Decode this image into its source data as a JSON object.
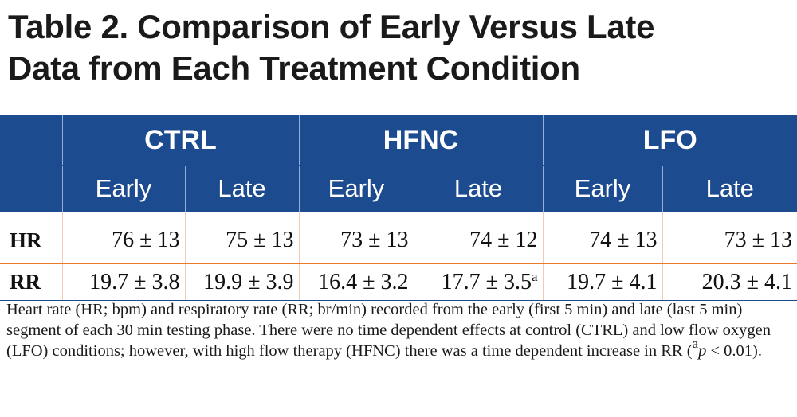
{
  "title": {
    "line1": "Table 2.  Comparison of Early Versus Late",
    "line2": "Data from Each Treatment Condition"
  },
  "table": {
    "groups": [
      "CTRL",
      "HFNC",
      "LFO"
    ],
    "subheaders": [
      "Early",
      "Late",
      "Early",
      "Late",
      "Early",
      "Late"
    ],
    "rows": [
      {
        "label": "HR",
        "cells": [
          "76 ± 13",
          "75 ± 13",
          "73 ± 13",
          "74 ± 12",
          "74 ± 13",
          "73 ± 13"
        ]
      },
      {
        "label": "RR",
        "cells": [
          "19.7 ± 3.8",
          "19.9 ± 3.9",
          "16.4 ± 3.2",
          "17.7 ± 3.5",
          "19.7 ± 4.1",
          "20.3 ± 4.1"
        ],
        "footnote_mark": "a"
      }
    ]
  },
  "caption": {
    "text": "Heart rate (HR; bpm) and respiratory rate (RR; br/min) recorded from the early (first 5 min) and late (last 5 min) segment of each 30 min testing phase.   There were no time dependent effects at control (CTRL) and low flow oxygen (LFO) conditions; however, with high flow therapy (HFNC) there was a time dependent increase in RR (",
    "sup": "a",
    "p_symbol": "p",
    "tail": " < 0.01)."
  }
}
